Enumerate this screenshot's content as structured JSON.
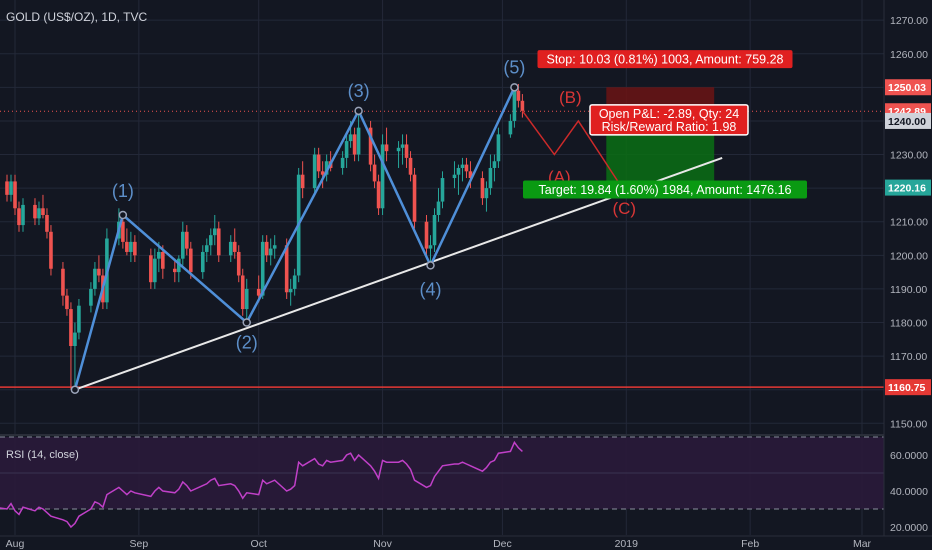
{
  "header": {
    "title": "GOLD (US$/OZ), 1D, TVC"
  },
  "rsi": {
    "label": "RSI (14, close)",
    "ticks": [
      "60.0000",
      "40.0000",
      "20.0000"
    ]
  },
  "colors": {
    "background": "#131722",
    "grid": "#232838",
    "up": "#26a69a",
    "down": "#ef5350",
    "wave": "#4f8fd8",
    "trendline": "#e8e8e8",
    "support": "#e53935",
    "stop_zone": "#6b1414",
    "target_zone": "#0b6e14",
    "rsi_line": "#c040c8",
    "rsi_band": "#2a1a3a"
  },
  "chart_data": {
    "type": "candlestick",
    "title": "GOLD (US$/OZ), 1D, TVC",
    "ylim": [
      1148,
      1276
    ],
    "y_ticks": [
      "1270.00",
      "1260.00",
      "1250.00",
      "1240.00",
      "1230.00",
      "1220.00",
      "1210.00",
      "1200.00",
      "1190.00",
      "1180.00",
      "1170.00",
      "1160.00",
      "1150.00"
    ],
    "x_ticks": [
      "Aug",
      "Sep",
      "Oct",
      "Nov",
      "Dec",
      "2019",
      "Feb",
      "Mar"
    ],
    "price_tags": [
      {
        "value": "1250.03",
        "color": "#ef5350"
      },
      {
        "value": "1242.89",
        "color": "#ef5350"
      },
      {
        "value": "1240.00",
        "color": "#d0d3da"
      },
      {
        "value": "1220.16",
        "color": "#26a69a"
      },
      {
        "value": "1160.75",
        "color": "#e53935"
      }
    ],
    "waves": [
      {
        "label": "(1)",
        "date": "2018-08-28",
        "price": 1212
      },
      {
        "label": "(2)",
        "date": "2018-09-28",
        "price": 1180
      },
      {
        "label": "(3)",
        "date": "2018-10-26",
        "price": 1243
      },
      {
        "label": "(4)",
        "date": "2018-11-13",
        "price": 1197
      },
      {
        "label": "(5)",
        "date": "2018-12-04",
        "price": 1250
      }
    ],
    "wave_start": {
      "date": "2018-08-16",
      "price": 1160
    },
    "projection": [
      {
        "label": "(B)",
        "date": "2018-12-20",
        "price": 1240
      },
      {
        "label": "(A)",
        "date": "2018-12-14",
        "price": 1230
      },
      {
        "label": "(C)",
        "date": "2018-12-31",
        "price": 1220
      }
    ],
    "trendline": {
      "from": {
        "date": "2018-08-16",
        "price": 1160
      },
      "to": {
        "date": "2019-01-25",
        "price": 1229
      }
    },
    "support_price": 1160.75,
    "position": {
      "entry": 1240,
      "stop": 1250.03,
      "target": 1220.16,
      "start_date": "2018-12-27",
      "end_date": "2019-01-23",
      "stop_label": "Stop: 10.03 (0.81%) 1003, Amount: 759.28",
      "target_label": "Target: 19.84 (1.60%) 1984, Amount: 1476.16",
      "pnl_label": "Open P&L: -2.89, Qty: 24",
      "rr_label": "Risk/Reward Ratio: 1.98"
    },
    "candles": [
      {
        "date": "2018-07-26",
        "o": 1224,
        "h": 1226,
        "l": 1220,
        "c": 1223
      },
      {
        "date": "2018-07-27",
        "o": 1223,
        "h": 1225,
        "l": 1220,
        "c": 1222
      },
      {
        "date": "2018-07-30",
        "o": 1222,
        "h": 1224,
        "l": 1216,
        "c": 1218
      },
      {
        "date": "2018-07-31",
        "o": 1218,
        "h": 1224,
        "l": 1216,
        "c": 1222
      },
      {
        "date": "2018-08-01",
        "o": 1222,
        "h": 1224,
        "l": 1212,
        "c": 1214
      },
      {
        "date": "2018-08-02",
        "o": 1214,
        "h": 1216,
        "l": 1207,
        "c": 1209
      },
      {
        "date": "2018-08-03",
        "o": 1209,
        "h": 1217,
        "l": 1207,
        "c": 1215
      },
      {
        "date": "2018-08-06",
        "o": 1215,
        "h": 1217,
        "l": 1209,
        "c": 1211
      },
      {
        "date": "2018-08-07",
        "o": 1211,
        "h": 1216,
        "l": 1209,
        "c": 1214
      },
      {
        "date": "2018-08-08",
        "o": 1214,
        "h": 1218,
        "l": 1211,
        "c": 1212
      },
      {
        "date": "2018-08-09",
        "o": 1212,
        "h": 1214,
        "l": 1205,
        "c": 1207
      },
      {
        "date": "2018-08-10",
        "o": 1207,
        "h": 1209,
        "l": 1194,
        "c": 1196
      },
      {
        "date": "2018-08-13",
        "o": 1196,
        "h": 1198,
        "l": 1185,
        "c": 1188
      },
      {
        "date": "2018-08-14",
        "o": 1188,
        "h": 1190,
        "l": 1182,
        "c": 1184
      },
      {
        "date": "2018-08-15",
        "o": 1184,
        "h": 1186,
        "l": 1160,
        "c": 1173
      },
      {
        "date": "2018-08-16",
        "o": 1173,
        "h": 1180,
        "l": 1160,
        "c": 1177
      },
      {
        "date": "2018-08-17",
        "o": 1177,
        "h": 1187,
        "l": 1175,
        "c": 1185
      },
      {
        "date": "2018-08-20",
        "o": 1185,
        "h": 1192,
        "l": 1183,
        "c": 1190
      },
      {
        "date": "2018-08-21",
        "o": 1190,
        "h": 1198,
        "l": 1188,
        "c": 1196
      },
      {
        "date": "2018-08-22",
        "o": 1196,
        "h": 1200,
        "l": 1192,
        "c": 1194
      },
      {
        "date": "2018-08-23",
        "o": 1194,
        "h": 1196,
        "l": 1184,
        "c": 1186
      },
      {
        "date": "2018-08-24",
        "o": 1186,
        "h": 1208,
        "l": 1184,
        "c": 1205
      },
      {
        "date": "2018-08-27",
        "o": 1205,
        "h": 1214,
        "l": 1203,
        "c": 1210
      },
      {
        "date": "2018-08-28",
        "o": 1210,
        "h": 1212,
        "l": 1202,
        "c": 1204
      },
      {
        "date": "2018-08-29",
        "o": 1204,
        "h": 1208,
        "l": 1200,
        "c": 1201
      },
      {
        "date": "2018-08-30",
        "o": 1201,
        "h": 1207,
        "l": 1198,
        "c": 1204
      },
      {
        "date": "2018-08-31",
        "o": 1204,
        "h": 1206,
        "l": 1198,
        "c": 1200
      },
      {
        "date": "2018-09-04",
        "o": 1200,
        "h": 1202,
        "l": 1190,
        "c": 1192
      },
      {
        "date": "2018-09-05",
        "o": 1192,
        "h": 1202,
        "l": 1190,
        "c": 1199
      },
      {
        "date": "2018-09-06",
        "o": 1199,
        "h": 1204,
        "l": 1195,
        "c": 1201
      },
      {
        "date": "2018-09-07",
        "o": 1201,
        "h": 1203,
        "l": 1193,
        "c": 1196
      },
      {
        "date": "2018-09-10",
        "o": 1196,
        "h": 1199,
        "l": 1192,
        "c": 1195
      },
      {
        "date": "2018-09-11",
        "o": 1195,
        "h": 1200,
        "l": 1192,
        "c": 1199
      },
      {
        "date": "2018-09-12",
        "o": 1199,
        "h": 1210,
        "l": 1197,
        "c": 1207
      },
      {
        "date": "2018-09-13",
        "o": 1207,
        "h": 1209,
        "l": 1200,
        "c": 1202
      },
      {
        "date": "2018-09-14",
        "o": 1202,
        "h": 1204,
        "l": 1193,
        "c": 1195
      },
      {
        "date": "2018-09-17",
        "o": 1195,
        "h": 1203,
        "l": 1193,
        "c": 1201
      },
      {
        "date": "2018-09-18",
        "o": 1201,
        "h": 1205,
        "l": 1198,
        "c": 1203
      },
      {
        "date": "2018-09-19",
        "o": 1203,
        "h": 1208,
        "l": 1200,
        "c": 1206
      },
      {
        "date": "2018-09-20",
        "o": 1206,
        "h": 1212,
        "l": 1203,
        "c": 1208
      },
      {
        "date": "2018-09-21",
        "o": 1208,
        "h": 1210,
        "l": 1198,
        "c": 1200
      },
      {
        "date": "2018-09-24",
        "o": 1200,
        "h": 1206,
        "l": 1198,
        "c": 1204
      },
      {
        "date": "2018-09-25",
        "o": 1204,
        "h": 1208,
        "l": 1199,
        "c": 1201
      },
      {
        "date": "2018-09-26",
        "o": 1201,
        "h": 1203,
        "l": 1192,
        "c": 1194
      },
      {
        "date": "2018-09-27",
        "o": 1194,
        "h": 1196,
        "l": 1182,
        "c": 1184
      },
      {
        "date": "2018-09-28",
        "o": 1184,
        "h": 1193,
        "l": 1180,
        "c": 1190
      },
      {
        "date": "2018-10-01",
        "o": 1190,
        "h": 1194,
        "l": 1186,
        "c": 1188
      },
      {
        "date": "2018-10-02",
        "o": 1188,
        "h": 1206,
        "l": 1187,
        "c": 1204
      },
      {
        "date": "2018-10-03",
        "o": 1204,
        "h": 1206,
        "l": 1198,
        "c": 1200
      },
      {
        "date": "2018-10-04",
        "o": 1200,
        "h": 1205,
        "l": 1197,
        "c": 1202
      },
      {
        "date": "2018-10-05",
        "o": 1202,
        "h": 1206,
        "l": 1199,
        "c": 1203
      },
      {
        "date": "2018-10-08",
        "o": 1203,
        "h": 1205,
        "l": 1187,
        "c": 1189
      },
      {
        "date": "2018-10-09",
        "o": 1189,
        "h": 1193,
        "l": 1185,
        "c": 1190
      },
      {
        "date": "2018-10-10",
        "o": 1190,
        "h": 1196,
        "l": 1188,
        "c": 1194
      },
      {
        "date": "2018-10-11",
        "o": 1194,
        "h": 1226,
        "l": 1192,
        "c": 1224
      },
      {
        "date": "2018-10-12",
        "o": 1224,
        "h": 1228,
        "l": 1217,
        "c": 1220
      },
      {
        "date": "2018-10-15",
        "o": 1220,
        "h": 1232,
        "l": 1218,
        "c": 1230
      },
      {
        "date": "2018-10-16",
        "o": 1230,
        "h": 1232,
        "l": 1223,
        "c": 1225
      },
      {
        "date": "2018-10-17",
        "o": 1225,
        "h": 1228,
        "l": 1220,
        "c": 1224
      },
      {
        "date": "2018-10-18",
        "o": 1224,
        "h": 1230,
        "l": 1222,
        "c": 1228
      },
      {
        "date": "2018-10-19",
        "o": 1228,
        "h": 1231,
        "l": 1225,
        "c": 1226
      },
      {
        "date": "2018-10-22",
        "o": 1226,
        "h": 1231,
        "l": 1224,
        "c": 1229
      },
      {
        "date": "2018-10-23",
        "o": 1229,
        "h": 1236,
        "l": 1226,
        "c": 1234
      },
      {
        "date": "2018-10-24",
        "o": 1234,
        "h": 1240,
        "l": 1232,
        "c": 1236
      },
      {
        "date": "2018-10-25",
        "o": 1236,
        "h": 1238,
        "l": 1228,
        "c": 1230
      },
      {
        "date": "2018-10-26",
        "o": 1230,
        "h": 1243,
        "l": 1228,
        "c": 1238
      },
      {
        "date": "2018-10-29",
        "o": 1238,
        "h": 1240,
        "l": 1225,
        "c": 1227
      },
      {
        "date": "2018-10-30",
        "o": 1227,
        "h": 1230,
        "l": 1220,
        "c": 1222
      },
      {
        "date": "2018-10-31",
        "o": 1222,
        "h": 1224,
        "l": 1212,
        "c": 1214
      },
      {
        "date": "2018-11-01",
        "o": 1214,
        "h": 1236,
        "l": 1212,
        "c": 1233
      },
      {
        "date": "2018-11-02",
        "o": 1233,
        "h": 1238,
        "l": 1228,
        "c": 1231
      },
      {
        "date": "2018-11-05",
        "o": 1231,
        "h": 1234,
        "l": 1226,
        "c": 1232
      },
      {
        "date": "2018-11-06",
        "o": 1232,
        "h": 1236,
        "l": 1227,
        "c": 1233
      },
      {
        "date": "2018-11-07",
        "o": 1233,
        "h": 1236,
        "l": 1226,
        "c": 1229
      },
      {
        "date": "2018-11-08",
        "o": 1229,
        "h": 1231,
        "l": 1222,
        "c": 1224
      },
      {
        "date": "2018-11-09",
        "o": 1224,
        "h": 1226,
        "l": 1208,
        "c": 1210
      },
      {
        "date": "2018-11-12",
        "o": 1210,
        "h": 1212,
        "l": 1200,
        "c": 1202
      },
      {
        "date": "2018-11-13",
        "o": 1202,
        "h": 1206,
        "l": 1197,
        "c": 1203
      },
      {
        "date": "2018-11-14",
        "o": 1203,
        "h": 1214,
        "l": 1201,
        "c": 1212
      },
      {
        "date": "2018-11-15",
        "o": 1212,
        "h": 1220,
        "l": 1210,
        "c": 1216
      },
      {
        "date": "2018-11-16",
        "o": 1216,
        "h": 1225,
        "l": 1214,
        "c": 1223
      },
      {
        "date": "2018-11-19",
        "o": 1223,
        "h": 1228,
        "l": 1220,
        "c": 1224
      },
      {
        "date": "2018-11-20",
        "o": 1224,
        "h": 1227,
        "l": 1218,
        "c": 1226
      },
      {
        "date": "2018-11-21",
        "o": 1226,
        "h": 1229,
        "l": 1222,
        "c": 1227
      },
      {
        "date": "2018-11-22",
        "o": 1227,
        "h": 1229,
        "l": 1223,
        "c": 1225
      },
      {
        "date": "2018-11-23",
        "o": 1225,
        "h": 1228,
        "l": 1220,
        "c": 1223
      },
      {
        "date": "2018-11-26",
        "o": 1223,
        "h": 1225,
        "l": 1215,
        "c": 1217
      },
      {
        "date": "2018-11-27",
        "o": 1217,
        "h": 1222,
        "l": 1213,
        "c": 1220
      },
      {
        "date": "2018-11-28",
        "o": 1220,
        "h": 1230,
        "l": 1218,
        "c": 1226
      },
      {
        "date": "2018-11-29",
        "o": 1226,
        "h": 1230,
        "l": 1222,
        "c": 1228
      },
      {
        "date": "2018-11-30",
        "o": 1228,
        "h": 1238,
        "l": 1226,
        "c": 1236
      },
      {
        "date": "2018-12-03",
        "o": 1236,
        "h": 1242,
        "l": 1235,
        "c": 1240
      },
      {
        "date": "2018-12-04",
        "o": 1240,
        "h": 1250,
        "l": 1238,
        "c": 1249
      },
      {
        "date": "2018-12-05",
        "o": 1249,
        "h": 1251,
        "l": 1244,
        "c": 1246
      },
      {
        "date": "2018-12-06",
        "o": 1246,
        "h": 1248,
        "l": 1241,
        "c": 1243
      }
    ],
    "rsi_values": [
      [
        33,
        "2018-07-26"
      ],
      [
        31,
        "2018-07-27"
      ],
      [
        30,
        "2018-07-30"
      ],
      [
        33,
        "2018-07-31"
      ],
      [
        29,
        "2018-08-01"
      ],
      [
        27,
        "2018-08-02"
      ],
      [
        31,
        "2018-08-03"
      ],
      [
        29,
        "2018-08-06"
      ],
      [
        31,
        "2018-08-07"
      ],
      [
        30,
        "2018-08-08"
      ],
      [
        28,
        "2018-08-09"
      ],
      [
        26,
        "2018-08-10"
      ],
      [
        24,
        "2018-08-13"
      ],
      [
        23,
        "2018-08-14"
      ],
      [
        20,
        "2018-08-15"
      ],
      [
        22,
        "2018-08-16"
      ],
      [
        26,
        "2018-08-17"
      ],
      [
        30,
        "2018-08-20"
      ],
      [
        34,
        "2018-08-21"
      ],
      [
        33,
        "2018-08-22"
      ],
      [
        31,
        "2018-08-23"
      ],
      [
        38,
        "2018-08-24"
      ],
      [
        42,
        "2018-08-27"
      ],
      [
        40,
        "2018-08-28"
      ],
      [
        38,
        "2018-08-29"
      ],
      [
        40,
        "2018-08-30"
      ],
      [
        39,
        "2018-08-31"
      ],
      [
        37,
        "2018-09-04"
      ],
      [
        40,
        "2018-09-05"
      ],
      [
        42,
        "2018-09-06"
      ],
      [
        40,
        "2018-09-07"
      ],
      [
        39,
        "2018-09-10"
      ],
      [
        41,
        "2018-09-11"
      ],
      [
        45,
        "2018-09-12"
      ],
      [
        43,
        "2018-09-13"
      ],
      [
        40,
        "2018-09-14"
      ],
      [
        43,
        "2018-09-17"
      ],
      [
        44,
        "2018-09-18"
      ],
      [
        46,
        "2018-09-19"
      ],
      [
        47,
        "2018-09-20"
      ],
      [
        43,
        "2018-09-21"
      ],
      [
        44,
        "2018-09-24"
      ],
      [
        43,
        "2018-09-25"
      ],
      [
        40,
        "2018-09-26"
      ],
      [
        36,
        "2018-09-27"
      ],
      [
        39,
        "2018-09-28"
      ],
      [
        38,
        "2018-10-01"
      ],
      [
        46,
        "2018-10-02"
      ],
      [
        44,
        "2018-10-03"
      ],
      [
        45,
        "2018-10-04"
      ],
      [
        46,
        "2018-10-05"
      ],
      [
        40,
        "2018-10-08"
      ],
      [
        41,
        "2018-10-09"
      ],
      [
        43,
        "2018-10-10"
      ],
      [
        56,
        "2018-10-11"
      ],
      [
        54,
        "2018-10-12"
      ],
      [
        58,
        "2018-10-15"
      ],
      [
        55,
        "2018-10-16"
      ],
      [
        54,
        "2018-10-17"
      ],
      [
        57,
        "2018-10-18"
      ],
      [
        56,
        "2018-10-19"
      ],
      [
        57,
        "2018-10-22"
      ],
      [
        60,
        "2018-10-23"
      ],
      [
        61,
        "2018-10-24"
      ],
      [
        57,
        "2018-10-25"
      ],
      [
        60,
        "2018-10-26"
      ],
      [
        54,
        "2018-10-29"
      ],
      [
        51,
        "2018-10-30"
      ],
      [
        47,
        "2018-10-31"
      ],
      [
        57,
        "2018-11-01"
      ],
      [
        56,
        "2018-11-02"
      ],
      [
        56,
        "2018-11-05"
      ],
      [
        57,
        "2018-11-06"
      ],
      [
        55,
        "2018-11-07"
      ],
      [
        52,
        "2018-11-08"
      ],
      [
        46,
        "2018-11-09"
      ],
      [
        42,
        "2018-11-12"
      ],
      [
        43,
        "2018-11-13"
      ],
      [
        48,
        "2018-11-14"
      ],
      [
        51,
        "2018-11-15"
      ],
      [
        54,
        "2018-11-16"
      ],
      [
        55,
        "2018-11-19"
      ],
      [
        55,
        "2018-11-20"
      ],
      [
        56,
        "2018-11-21"
      ],
      [
        55,
        "2018-11-22"
      ],
      [
        54,
        "2018-11-23"
      ],
      [
        51,
        "2018-11-26"
      ],
      [
        53,
        "2018-11-27"
      ],
      [
        56,
        "2018-11-28"
      ],
      [
        57,
        "2018-11-29"
      ],
      [
        61,
        "2018-11-30"
      ],
      [
        62,
        "2018-12-03"
      ],
      [
        67,
        "2018-12-04"
      ],
      [
        64,
        "2018-12-05"
      ],
      [
        62,
        "2018-12-06"
      ]
    ]
  }
}
